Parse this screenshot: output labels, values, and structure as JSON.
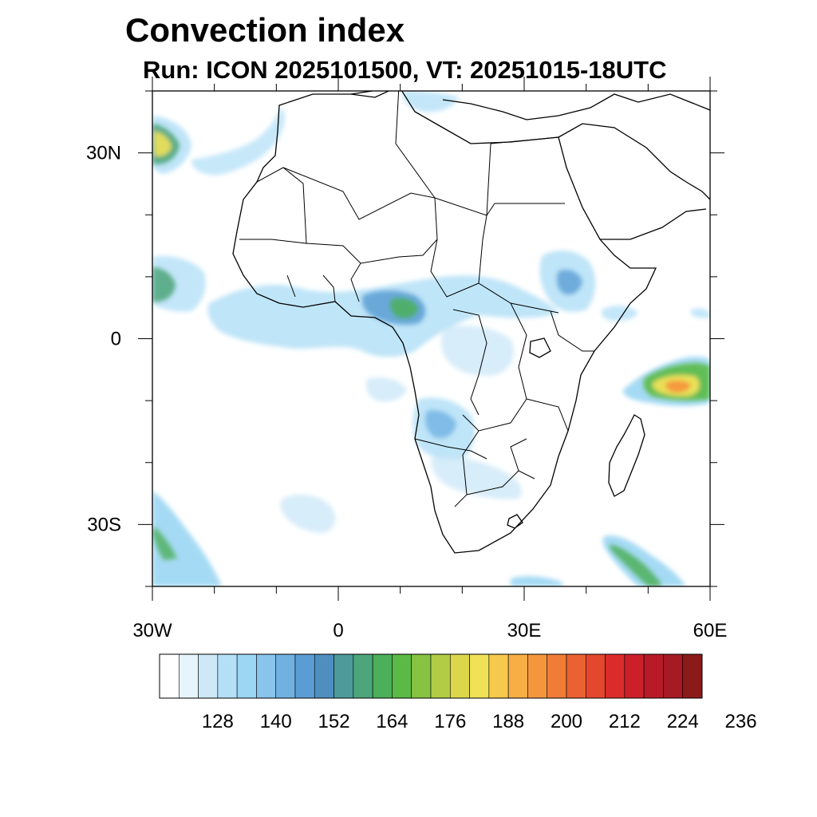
{
  "title": "Convection index",
  "subtitle": "Run: ICON 2025101500,  VT: 20251015-18UTC",
  "map": {
    "projection": "lat-lon",
    "lon_range": [
      -30,
      60
    ],
    "lat_range": [
      -40,
      40
    ],
    "lon_tick_labels": [
      {
        "lon": -30,
        "label": "30W"
      },
      {
        "lon": 0,
        "label": "0"
      },
      {
        "lon": 30,
        "label": "30E"
      },
      {
        "lon": 60,
        "label": "60E"
      }
    ],
    "lat_tick_labels": [
      {
        "lat": 30,
        "label": "30N"
      },
      {
        "lat": 0,
        "label": "0"
      },
      {
        "lat": -30,
        "label": "30S"
      }
    ]
  },
  "colorbar": {
    "colors": [
      "#ffffff",
      "#e6f5fc",
      "#cde9f7",
      "#b4e0f7",
      "#9bd6f3",
      "#88c4ec",
      "#70b1e2",
      "#5a9dd4",
      "#4f8fc0",
      "#4d9a9a",
      "#4da57a",
      "#4caf5a",
      "#5aba45",
      "#86c342",
      "#b2cd45",
      "#dcd74a",
      "#f0e157",
      "#f6c84c",
      "#f7ae44",
      "#f5963c",
      "#f07d36",
      "#ea6231",
      "#e3472d",
      "#db2c2b",
      "#cc1f2a",
      "#b81b27",
      "#a61a23",
      "#8b1a1a"
    ],
    "tick_labels": [
      "128",
      "140",
      "152",
      "164",
      "176",
      "188",
      "200",
      "212",
      "224",
      "236"
    ]
  }
}
